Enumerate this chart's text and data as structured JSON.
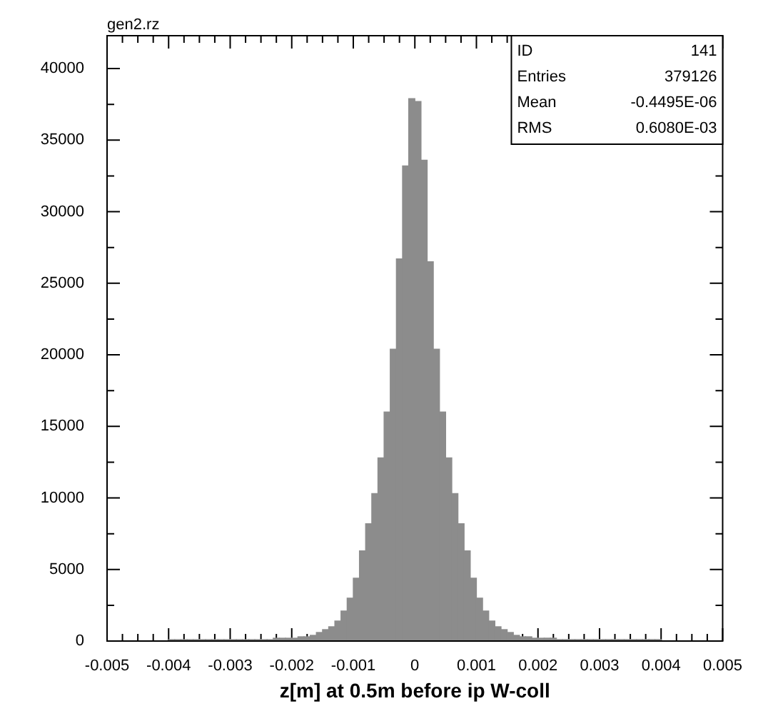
{
  "chart_data": {
    "type": "histogram",
    "title": "gen2.rz",
    "xlabel": "z[m] at 0.5m before ip W-coll",
    "bins": [
      -0.005,
      -0.0049,
      -0.0048,
      -0.0047,
      -0.0046,
      -0.0045,
      -0.0044,
      -0.0043,
      -0.0042,
      -0.0041,
      -0.004,
      -0.0039,
      -0.0038,
      -0.0037,
      -0.0036,
      -0.0035,
      -0.0034,
      -0.0033,
      -0.0032,
      -0.0031,
      -0.003,
      -0.0029,
      -0.0028,
      -0.0027,
      -0.0026,
      -0.0025,
      -0.0024,
      -0.0023,
      -0.0022,
      -0.0021,
      -0.002,
      -0.0019,
      -0.0018,
      -0.0017,
      -0.0016,
      -0.0015,
      -0.0014,
      -0.0013,
      -0.0012,
      -0.0011,
      -0.001,
      -0.0009,
      -0.0008,
      -0.0007,
      -0.0006,
      -0.0005,
      -0.0004,
      -0.0003,
      -0.0002,
      -0.0001,
      0,
      0.0001,
      0.0002,
      0.0003,
      0.0004,
      0.0005,
      0.0006,
      0.0007,
      0.0008,
      0.0009,
      0.001,
      0.0011,
      0.0012,
      0.0013,
      0.0014,
      0.0015,
      0.0016,
      0.0017,
      0.0018,
      0.0019,
      0.002,
      0.0021,
      0.0022,
      0.0023,
      0.0024,
      0.0025,
      0.0026,
      0.0027,
      0.0028,
      0.0029,
      0.003,
      0.0031,
      0.0032,
      0.0033,
      0.0034,
      0.0035,
      0.0036,
      0.0037,
      0.0038,
      0.0039,
      0.004,
      0.0041,
      0.0042,
      0.0043,
      0.0044,
      0.0045,
      0.0046,
      0.0047,
      0.0048,
      0.0049,
      0.005
    ],
    "values": [
      0,
      0,
      0,
      0,
      0,
      0,
      0,
      0,
      0,
      0,
      100,
      100,
      100,
      100,
      100,
      100,
      100,
      100,
      100,
      100,
      100,
      100,
      100,
      100,
      100,
      100,
      100,
      200,
      200,
      200,
      200,
      300,
      300,
      400,
      600,
      800,
      1000,
      1400,
      2100,
      3000,
      4400,
      6300,
      8200,
      10300,
      12800,
      16000,
      20400,
      26700,
      33200,
      37900,
      37700,
      33600,
      26500,
      20400,
      16000,
      12800,
      10300,
      8200,
      6300,
      4400,
      3000,
      2100,
      1400,
      1000,
      800,
      600,
      400,
      300,
      300,
      200,
      200,
      200,
      200,
      100,
      100,
      100,
      100,
      100,
      100,
      100,
      100,
      100,
      100,
      100,
      100,
      100,
      100,
      100,
      100,
      100,
      0,
      0,
      0,
      0,
      0,
      0,
      0,
      0,
      0,
      0
    ],
    "color": "#8c8c8c",
    "xlim": [
      -0.005,
      0.005
    ],
    "xticks": [
      -0.005,
      {
        "value": -0.00475,
        "label": null
      },
      {
        "value": -0.0045,
        "label": null
      },
      {
        "value": -0.00425,
        "label": null
      },
      -0.004,
      {
        "value": -0.00375,
        "label": null
      },
      {
        "value": -0.0035,
        "label": null
      },
      {
        "value": -0.00325,
        "label": null
      },
      -0.003,
      {
        "value": -0.00275,
        "label": null
      },
      {
        "value": -0.0025,
        "label": null
      },
      {
        "value": -0.00225,
        "label": null
      },
      -0.002,
      {
        "value": -0.00175,
        "label": null
      },
      {
        "value": -0.0015,
        "label": null
      },
      {
        "value": -0.00125,
        "label": null
      },
      -0.001,
      {
        "value": -0.00075,
        "label": null
      },
      {
        "value": -0.0005,
        "label": null
      },
      {
        "value": -0.00025,
        "label": null
      },
      0,
      {
        "value": 0.00025,
        "label": null
      },
      {
        "value": 0.0005,
        "label": null
      },
      {
        "value": 0.00075,
        "label": null
      },
      0.001,
      {
        "value": 0.00125,
        "label": null
      },
      {
        "value": 0.0015,
        "label": null
      },
      {
        "value": 0.00175,
        "label": null
      },
      0.002,
      {
        "value": 0.00225,
        "label": null
      },
      {
        "value": 0.0025,
        "label": null
      },
      {
        "value": 0.00275,
        "label": null
      },
      0.003,
      {
        "value": 0.00325,
        "label": null
      },
      {
        "value": 0.0035,
        "label": null
      },
      {
        "value": 0.00375,
        "label": null
      },
      0.004,
      {
        "value": 0.00425,
        "label": null
      },
      {
        "value": 0.0045,
        "label": null
      },
      {
        "value": 0.00475,
        "label": null
      },
      0.005
    ],
    "ylim": [
      0,
      42300
    ],
    "yticks": [
      0,
      {
        "value": 2500,
        "label": null
      },
      5000,
      {
        "value": 7500,
        "label": null
      },
      10000,
      {
        "value": 12500,
        "label": null
      },
      15000,
      {
        "value": 17500,
        "label": null
      },
      20000,
      {
        "value": 22500,
        "label": null
      },
      25000,
      {
        "value": 27500,
        "label": null
      },
      30000,
      {
        "value": 32500,
        "label": null
      },
      35000,
      {
        "value": 37500,
        "label": null
      },
      40000
    ],
    "annotations": [
      "ID",
      "141",
      "Entries",
      "379126",
      "Mean",
      "-0.4495E-06",
      "RMS",
      "0.6080E-03"
    ]
  }
}
